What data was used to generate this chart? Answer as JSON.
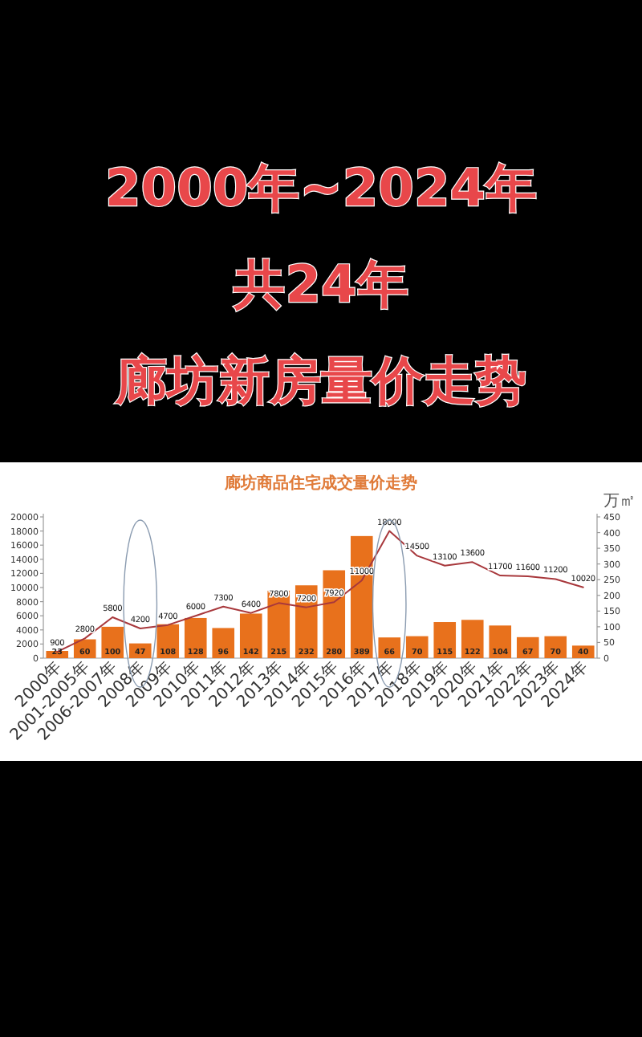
{
  "chart_data": {
    "type": "bar",
    "title": "廊坊商品住宅成交量价走势",
    "y2label": "万㎡",
    "annotations": [
      "2000年~2024年",
      "共24年",
      "廊坊新房量价走势"
    ],
    "categories": [
      "2000年",
      "2001-2005年",
      "2006-2007年",
      "2008年",
      "2009年",
      "2010年",
      "2011年",
      "2012年",
      "2013年",
      "2014年",
      "2015年",
      "2016年",
      "2017年",
      "2018年",
      "2019年",
      "2020年",
      "2021年",
      "2022年",
      "2023年",
      "2024年"
    ],
    "series": [
      {
        "axis": "y2",
        "color": "#e8711c",
        "values": [
          23,
          60,
          100,
          47,
          108,
          128,
          96,
          142,
          215,
          232,
          280,
          389,
          66,
          70,
          115,
          122,
          104,
          67,
          70,
          40
        ]
      },
      {
        "type": "line",
        "color": "#a8383c",
        "values": [
          900,
          2800,
          5800,
          4200,
          4700,
          6000,
          7300,
          6400,
          7800,
          7200,
          7920,
          11000,
          18000,
          14500,
          13100,
          13600,
          11700,
          11600,
          11200,
          10020
        ]
      }
    ],
    "ylim": [
      0,
      20000
    ],
    "yticks": [
      0,
      2000,
      4000,
      6000,
      8000,
      10000,
      12000,
      14000,
      16000,
      18000,
      20000
    ],
    "y2lim": [
      0,
      450
    ],
    "y2ticks": [
      0,
      50,
      100,
      150,
      200,
      250,
      300,
      350,
      400,
      450
    ],
    "data_labels": true
  }
}
